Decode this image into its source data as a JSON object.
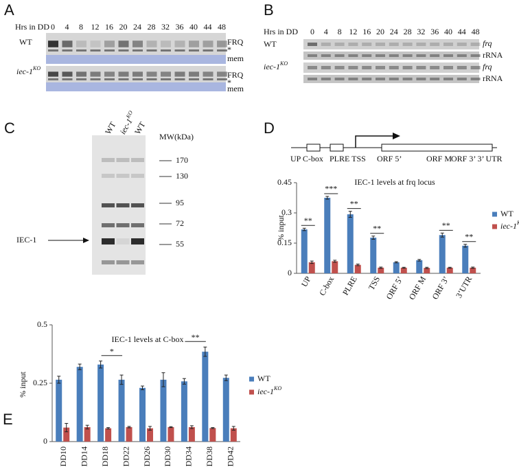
{
  "panel_a": {
    "letter": "A",
    "time_label": "Hrs in DD",
    "times": [
      0,
      4,
      8,
      12,
      16,
      20,
      24,
      28,
      32,
      36,
      40,
      44,
      48
    ],
    "rows": [
      {
        "label": "WT",
        "marks": [
          "FRQ",
          "*",
          "mem"
        ]
      },
      {
        "label": "iec-1",
        "sup": "KO",
        "marks": [
          "FRQ",
          "*",
          "mem"
        ]
      }
    ]
  },
  "panel_b": {
    "letter": "B",
    "time_label": "Hrs in DD",
    "times": [
      0,
      4,
      8,
      12,
      16,
      20,
      24,
      28,
      32,
      36,
      40,
      44,
      48
    ],
    "rows": [
      {
        "label": "WT",
        "marks": [
          "frq",
          "rRNA"
        ]
      },
      {
        "label": "iec-1",
        "sup": "KO",
        "marks": [
          "frq",
          "rRNA"
        ]
      }
    ]
  },
  "panel_c": {
    "letter": "C",
    "lanes": [
      {
        "label": "WT"
      },
      {
        "label": "iec-1",
        "sup": "KO"
      },
      {
        "label": "WT"
      }
    ],
    "mw_label": "MW(kDa)",
    "markers": [
      170,
      130,
      95,
      72,
      55
    ],
    "arrow_label": "IEC-1"
  },
  "panel_d": {
    "letter": "D",
    "diagram_labels": [
      "UP C-box",
      "PLRE TSS",
      "ORF 5’",
      "ORF M",
      "ORF 3’ 3’ UTR"
    ]
  },
  "panel_e": {
    "letter": "E"
  },
  "chart_data": [
    {
      "type": "bar",
      "title": "IEC-1 levels at frq locus",
      "y_label": "% input",
      "categories": [
        "UP",
        "C-box",
        "PLRE",
        "TSS",
        "ORF 5’",
        "ORF M",
        "ORF 3’",
        "3’UTR"
      ],
      "series": [
        {
          "name": "WT",
          "color": "#4a7ebb",
          "values": [
            0.218,
            0.375,
            0.293,
            0.177,
            0.055,
            0.065,
            0.19,
            0.137
          ],
          "errors": [
            0.006,
            0.007,
            0.015,
            0.008,
            0.003,
            0.004,
            0.01,
            0.007
          ]
        },
        {
          "name": "iec-1",
          "name_sup": "KO",
          "color": "#c0504d",
          "values": [
            0.055,
            0.06,
            0.042,
            0.028,
            0.028,
            0.027,
            0.028,
            0.028
          ],
          "errors": [
            0.006,
            0.005,
            0.004,
            0.003,
            0.002,
            0.003,
            0.002,
            0.003
          ]
        }
      ],
      "significance": [
        "**",
        "***",
        "**",
        "**",
        null,
        null,
        "**",
        "**"
      ],
      "ylim": [
        0,
        0.45
      ],
      "yticks": [
        0,
        0.15,
        0.3,
        0.45
      ],
      "legend": "right"
    },
    {
      "type": "bar",
      "title": "IEC-1 levels at C-box",
      "y_label": "% input",
      "categories": [
        "DD10",
        "DD14",
        "DD18",
        "DD22",
        "DD26",
        "DD30",
        "DD34",
        "DD38",
        "DD42"
      ],
      "series": [
        {
          "name": "WT",
          "color": "#4a7ebb",
          "values": [
            0.265,
            0.32,
            0.33,
            0.265,
            0.23,
            0.265,
            0.258,
            0.385,
            0.273
          ],
          "errors": [
            0.015,
            0.012,
            0.015,
            0.02,
            0.008,
            0.03,
            0.012,
            0.02,
            0.012
          ]
        },
        {
          "name": "iec-1",
          "name_sup": "KO",
          "color": "#c0504d",
          "values": [
            0.06,
            0.062,
            0.057,
            0.062,
            0.057,
            0.062,
            0.062,
            0.058,
            0.057
          ],
          "errors": [
            0.018,
            0.008,
            0.003,
            0.003,
            0.008,
            0.002,
            0.006,
            0.002,
            0.008
          ]
        }
      ],
      "significance": [
        null,
        null,
        "*",
        null,
        null,
        null,
        "**",
        null,
        null
      ],
      "ylim": [
        0,
        0.5
      ],
      "yticks": [
        0,
        0.25,
        0.5
      ],
      "legend": "right"
    }
  ]
}
